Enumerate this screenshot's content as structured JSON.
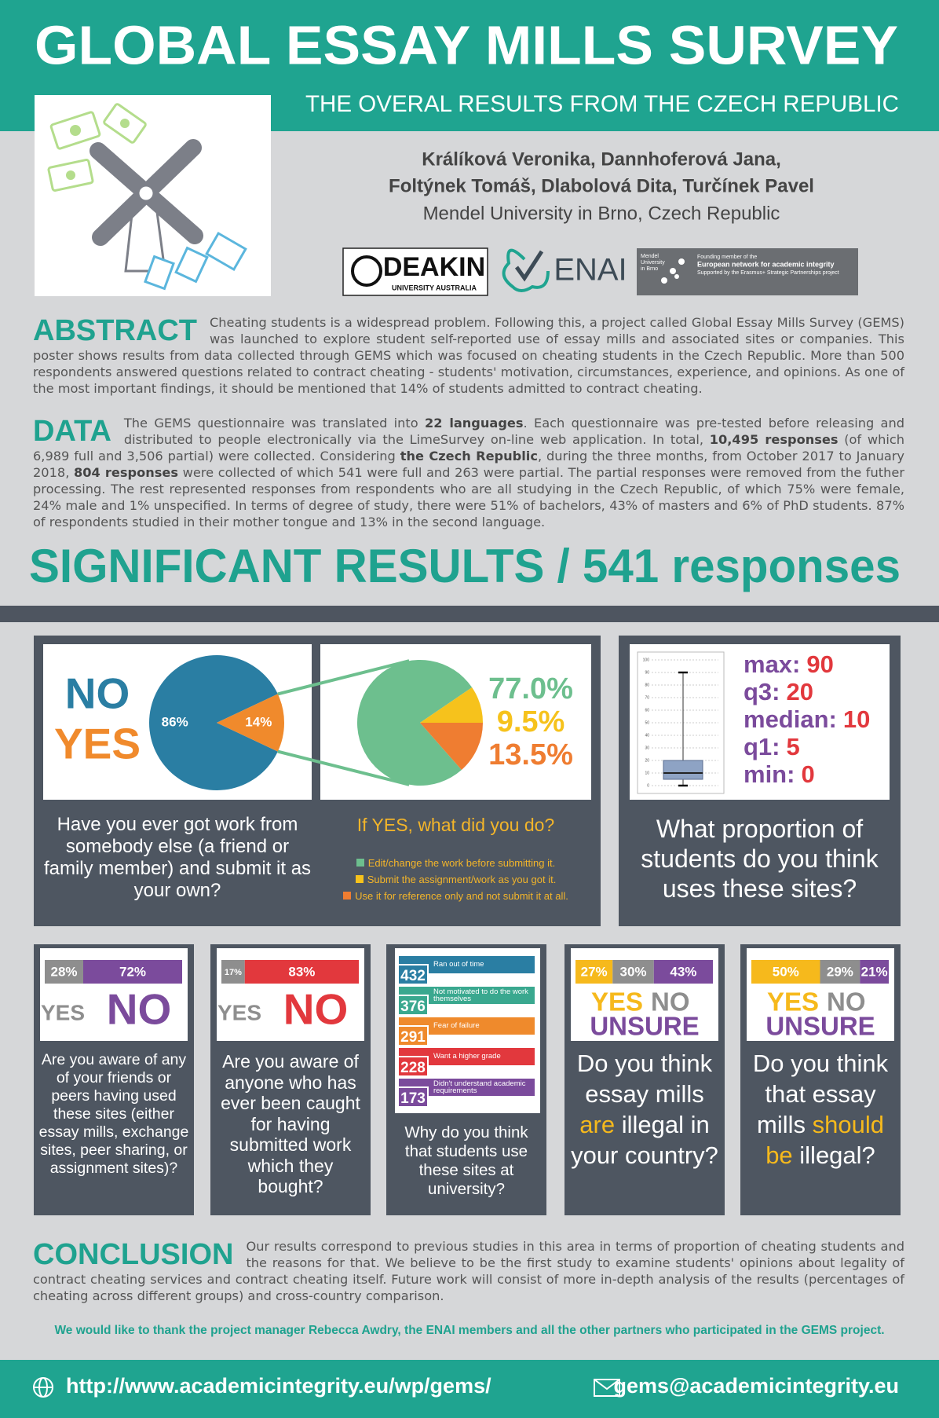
{
  "header": {
    "title": "GLOBAL ESSAY MILLS SURVEY",
    "subtitle": "THE OVERAL RESULTS FROM THE CZECH REPUBLIC"
  },
  "authors": {
    "names": [
      "Králíková Veronika, Dannhoferová Jana,",
      "Foltýnek Tomáš, Dlabolová Dita, Turčínek Pavel"
    ],
    "affiliation": "Mendel University in Brno, Czech Republic"
  },
  "logos": {
    "deakin": {
      "name": "DEAKIN",
      "sub": "UNIVERSITY AUSTRALIA"
    },
    "enai": "ENAI",
    "mendel": {
      "name": [
        "Mendel",
        "University",
        "in Brno"
      ],
      "lines": [
        "Founding member of the",
        "European network for academic integrity",
        "Supported by the Erasmus+ Strategic Partnerships project"
      ]
    }
  },
  "abstract": {
    "heading": "ABSTRACT",
    "text": "Cheating students is a widespread problem. Following this, a project called Global Essay Mills Survey (GEMS) was launched to explore student self-reported use of essay mills and associated sites or companies. This poster shows results from data collected through GEMS which was focused on cheating students in the Czech Republic. More than 500 respondents answered questions related to contract cheating - students' motivation, circumstances, experience, and opinions. As one of the most important findings, it should be mentioned that 14% of students admitted to contract cheating."
  },
  "data": {
    "heading": "DATA",
    "segments": [
      {
        "text": "The GEMS questionnaire was translated into ",
        "bold": false
      },
      {
        "text": "22 languages",
        "bold": true
      },
      {
        "text": ". Each questionnaire was pre-tested before releasing and distributed to people electronically via the LimeSurvey on-line web application. In total, ",
        "bold": false
      },
      {
        "text": "10,495 responses",
        "bold": true
      },
      {
        "text": " (of which 6,989 full and 3,506 partial) were collected. Considering ",
        "bold": false
      },
      {
        "text": "the Czech Republic",
        "bold": true
      },
      {
        "text": ", during the three months, from October 2017 to January 2018, ",
        "bold": false
      },
      {
        "text": "804 responses",
        "bold": true
      },
      {
        "text": " were collected of which 541 were full and 263 were partial. The partial responses were removed from the futher processing. The rest represented responses from respondents who are all studying in the Czech Republic, of which 75% were female, 24% male and 1% unspecified. In terms of degree of study, there were 51% of bachelors, 43% of masters and 6% of PhD students. 87% of respondents studied in their mother tongue and 13% in the second language.",
        "bold": false
      }
    ]
  },
  "results": {
    "heading": "SIGNIFICANT RESULTS / 541 responses"
  },
  "q1": {
    "labels": [
      "NO",
      "YES"
    ],
    "values": [
      86,
      14
    ],
    "value_labels": [
      "86%",
      "14%"
    ],
    "colors": [
      "#2a7ea3",
      "#f08a2c"
    ],
    "question": "Have you ever got work from somebody else (a friend or family member) and submit it as your own?"
  },
  "q2": {
    "title": "If YES, what did you do?",
    "labels": [
      "Edit/change the work before submitting it.",
      "Submit the assignment/work as you got it.",
      "Use it for reference only and not submit it at all."
    ],
    "values": [
      77.0,
      9.5,
      13.5
    ],
    "value_labels": [
      "77.0%",
      "9.5%",
      "13.5%"
    ],
    "colors": [
      "#6dbf8e",
      "#f6c21c",
      "#ef7d31"
    ]
  },
  "q_box": {
    "stats": [
      {
        "label": "max:",
        "value": 90
      },
      {
        "label": "q3:",
        "value": 20
      },
      {
        "label": "median:",
        "value": 10
      },
      {
        "label": "q1:",
        "value": 5
      },
      {
        "label": "min:",
        "value": 0
      }
    ],
    "ylim": [
      0,
      100
    ],
    "yticks": [
      0,
      10,
      20,
      30,
      40,
      50,
      60,
      70,
      80,
      90,
      100
    ],
    "question": "What proportion of students do you think uses these sites?"
  },
  "q3": {
    "labels": [
      "YES",
      "NO"
    ],
    "values": [
      28,
      72
    ],
    "value_labels": [
      "28%",
      "72%"
    ],
    "colors": [
      "#8e8e8e",
      "#7b4b9c"
    ],
    "question": "Are you aware of any of your friends or peers having used these sites (either essay mills, exchange sites, peer sharing, or assignment sites)?"
  },
  "q4": {
    "labels": [
      "YES",
      "NO"
    ],
    "values": [
      17,
      83
    ],
    "value_labels": [
      "17%",
      "83%"
    ],
    "colors": [
      "#8e8e8e",
      "#e2383d"
    ],
    "question": "Are you aware of anyone who has ever been caught for having submitted work which they bought?"
  },
  "q5": {
    "labels": [
      "Ran out of time",
      "Not motivated to do the work themselves",
      "Fear of failure",
      "Want a higher grade",
      "Didn't understand academic requirements"
    ],
    "values": [
      432,
      376,
      291,
      228,
      173
    ],
    "colors": [
      "#2a7ea3",
      "#3aa88f",
      "#ef8a2c",
      "#e2383d",
      "#7b4b9c"
    ],
    "question": "Why do you think that students use these sites at university?"
  },
  "q6": {
    "labels": [
      "YES",
      "NO",
      "UNSURE"
    ],
    "values": [
      27,
      30,
      43
    ],
    "value_labels": [
      "27%",
      "30%",
      "43%"
    ],
    "colors": [
      "#f6b91c",
      "#8e8e8e",
      "#7b4b9c"
    ],
    "question_segments": [
      {
        "text": "Do you think essay mills ",
        "highlight": false
      },
      {
        "text": "are",
        "highlight": true
      },
      {
        "text": " illegal in your country?",
        "highlight": false
      }
    ],
    "highlight_color": "#f6b91c"
  },
  "q7": {
    "labels": [
      "YES",
      "NO",
      "UNSURE"
    ],
    "values": [
      50,
      29,
      21
    ],
    "value_labels": [
      "50%",
      "29%",
      "21%"
    ],
    "colors": [
      "#f6b91c",
      "#8e8e8e",
      "#7b4b9c"
    ],
    "question_segments": [
      {
        "text": "Do you think that essay mills ",
        "highlight": false
      },
      {
        "text": "should be",
        "highlight": true
      },
      {
        "text": " illegal?",
        "highlight": false
      }
    ],
    "highlight_color": "#f6b91c"
  },
  "conclusion": {
    "heading": "CONCLUSION",
    "text": "Our results correspond to previous studies in this area in terms of proportion of cheating students and the reasons for that. We believe to be the first study to examine students' opinions about legality of contract cheating services and contract cheating itself. Future work will consist of more in-depth analysis of the results (percentages of cheating across different groups) and cross-country comparison."
  },
  "thanks": "We would like to thank the project manager Rebecca Awdry, the ENAI members and all the other partners who participated in the GEMS project.",
  "footer": {
    "url": "http://www.academicintegrity.eu/wp/gems/",
    "email": "gems@academicintegrity.eu"
  }
}
